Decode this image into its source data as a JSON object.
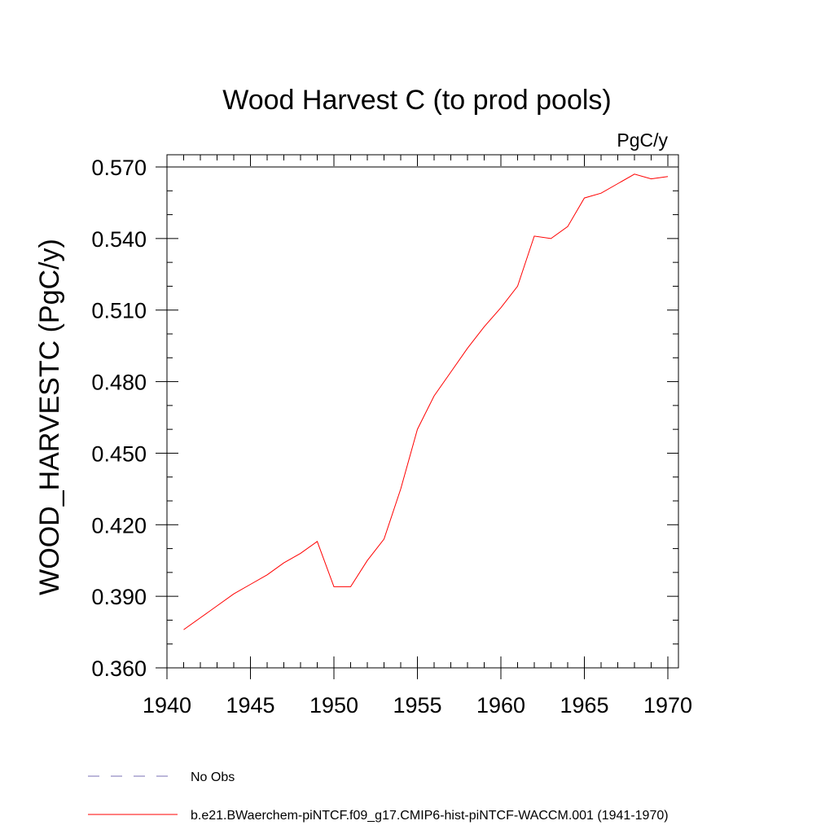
{
  "chart_data": {
    "type": "line",
    "title": "Wood Harvest C (to prod pools)",
    "units": "PgC/y",
    "xlabel": "",
    "ylabel": "WOOD_HARVESTC  (PgC/y)",
    "xlim": [
      1940,
      1970
    ],
    "ylim": [
      0.36,
      0.57
    ],
    "x_ticks": [
      1940,
      1945,
      1950,
      1955,
      1960,
      1965,
      1970
    ],
    "y_ticks": [
      0.36,
      0.39,
      0.42,
      0.45,
      0.48,
      0.51,
      0.54,
      0.57
    ],
    "x_tick_labels": [
      "1940",
      "1945",
      "1950",
      "1955",
      "1960",
      "1965",
      "1970"
    ],
    "y_tick_labels": [
      "0.360",
      "0.390",
      "0.420",
      "0.450",
      "0.480",
      "0.510",
      "0.540",
      "0.570"
    ],
    "grid": false,
    "series": [
      {
        "name": "b.e21.BWaerchem-piNTCF.f09_g17.CMIP6-hist-piNTCF-WACCM.001 (1941-1970)",
        "color": "#ff0000",
        "x": [
          1941,
          1942,
          1943,
          1944,
          1945,
          1946,
          1947,
          1948,
          1949,
          1950,
          1951,
          1952,
          1953,
          1954,
          1955,
          1956,
          1957,
          1958,
          1959,
          1960,
          1961,
          1962,
          1963,
          1964,
          1965,
          1966,
          1967,
          1968,
          1969,
          1970
        ],
        "y": [
          0.376,
          0.381,
          0.386,
          0.391,
          0.395,
          0.399,
          0.404,
          0.408,
          0.413,
          0.394,
          0.394,
          0.405,
          0.414,
          0.435,
          0.46,
          0.474,
          0.484,
          0.494,
          0.503,
          0.511,
          0.52,
          0.541,
          0.54,
          0.545,
          0.557,
          0.559,
          0.563,
          0.567,
          0.565,
          0.566
        ]
      }
    ],
    "legend": {
      "placement": "bottom-left",
      "entries": [
        {
          "label": "No Obs",
          "color": "#7a6fb5",
          "dash": true
        },
        {
          "label": "b.e21.BWaerchem-piNTCF.f09_g17.CMIP6-hist-piNTCF-WACCM.001 (1941-1970)",
          "color": "#ff0000",
          "dash": false
        }
      ]
    }
  }
}
